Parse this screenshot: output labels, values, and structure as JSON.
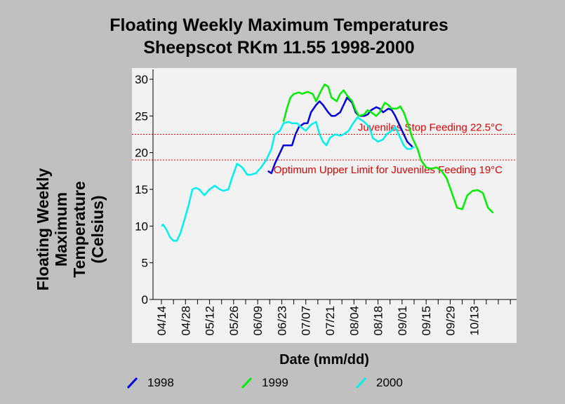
{
  "chart_data": {
    "type": "line",
    "title": "Floating Weekly Maximum Temperatures",
    "subtitle": "Sheepscot RKm 11.55 1998-2000",
    "xlabel": "Date (mm/dd)",
    "ylabel": [
      "Floating Weekly",
      "Maximum",
      "Temperature",
      "(Celsius)"
    ],
    "x_tick_labels": [
      "04/14",
      "04/28",
      "05/12",
      "05/26",
      "06/09",
      "06/23",
      "07/07",
      "07/21",
      "08/04",
      "08/18",
      "09/01",
      "09/15",
      "09/29",
      "10/13"
    ],
    "y_ticks": [
      0,
      5,
      10,
      15,
      20,
      25,
      30
    ],
    "ylim": [
      0,
      30
    ],
    "x_unit": "days since 04/14",
    "xlim": [
      0,
      196
    ],
    "grid": false,
    "legend_position": "bottom",
    "reference_lines": [
      {
        "y": 22.5,
        "label": "Juveniles Stop Feeding 22.5°C",
        "color": "#e00000"
      },
      {
        "y": 19,
        "label": "Optimum Upper Limit for Juveniles Feeding 19°C",
        "color": "#e00000"
      }
    ],
    "series": [
      {
        "name": "1998",
        "color": "#0000d8",
        "x": [
          62,
          64,
          66,
          69,
          71,
          73,
          76,
          78,
          80,
          83,
          85,
          87,
          90,
          92,
          94,
          97,
          99,
          101,
          104,
          106,
          108,
          111,
          113,
          115,
          118,
          120,
          122,
          125,
          127,
          129,
          132,
          134,
          136,
          139,
          141,
          143,
          146
        ],
        "y": [
          17.5,
          17.2,
          18.5,
          20.0,
          21.0,
          21.0,
          21.0,
          22.5,
          23.5,
          24.0,
          24.0,
          25.5,
          26.5,
          27.0,
          26.5,
          25.5,
          25.0,
          25.0,
          25.5,
          26.5,
          27.5,
          26.8,
          25.5,
          25.0,
          25.0,
          25.2,
          25.8,
          26.2,
          26.0,
          25.5,
          26.0,
          25.8,
          25.0,
          23.5,
          22.5,
          21.5,
          20.8
        ]
      },
      {
        "name": "1999",
        "color": "#00ee00",
        "x": [
          71,
          73,
          75,
          77,
          80,
          82,
          85,
          88,
          90,
          93,
          95,
          97,
          99,
          102,
          104,
          106,
          108,
          111,
          113,
          115,
          118,
          120,
          122,
          125,
          127,
          130,
          132,
          134,
          137,
          139,
          141,
          144,
          146,
          149,
          151,
          154,
          157,
          160,
          163,
          166,
          169,
          172,
          175,
          178,
          181,
          184,
          187,
          190,
          193
        ],
        "y": [
          24.2,
          26.0,
          27.5,
          28.0,
          28.2,
          28.0,
          28.3,
          28.0,
          27.0,
          28.5,
          29.3,
          29.0,
          27.5,
          27.0,
          28.0,
          28.5,
          27.8,
          27.0,
          25.8,
          25.0,
          25.2,
          25.8,
          25.5,
          25.0,
          25.5,
          26.8,
          26.5,
          26.0,
          26.0,
          26.3,
          25.5,
          23.5,
          22.0,
          20.5,
          19.0,
          18.0,
          17.8,
          18.0,
          17.5,
          16.5,
          14.5,
          12.5,
          12.3,
          14.2,
          14.8,
          14.9,
          14.5,
          12.5,
          11.8
        ]
      },
      {
        "name": "2000",
        "color": "#00f0f0",
        "x": [
          0,
          1,
          3,
          5,
          7,
          9,
          11,
          13,
          16,
          18,
          20,
          22,
          25,
          28,
          31,
          34,
          36,
          39,
          41,
          44,
          47,
          50,
          52,
          55,
          58,
          61,
          64,
          66,
          69,
          71,
          74,
          76,
          79,
          81,
          84,
          87,
          90,
          92,
          94,
          96,
          98,
          101,
          104,
          106,
          109,
          111,
          114,
          116,
          118,
          121,
          123,
          126,
          129,
          131,
          134,
          136,
          138,
          141,
          143,
          145,
          147
        ],
        "y": [
          10.0,
          10.2,
          9.5,
          8.5,
          8.0,
          8.0,
          9.0,
          10.5,
          13.0,
          15.0,
          15.2,
          15.0,
          14.2,
          15.0,
          15.5,
          15.0,
          14.8,
          15.0,
          16.5,
          18.5,
          18.0,
          17.0,
          17.0,
          17.2,
          18.0,
          19.0,
          20.5,
          22.5,
          23.0,
          24.0,
          24.2,
          24.0,
          24.0,
          23.5,
          23.0,
          23.8,
          24.2,
          22.5,
          21.5,
          21.0,
          22.0,
          22.5,
          22.3,
          22.5,
          23.0,
          23.8,
          24.8,
          24.5,
          24.2,
          23.5,
          22.0,
          21.5,
          21.8,
          22.5,
          23.0,
          23.5,
          22.5,
          21.0,
          20.5,
          20.5,
          20.8
        ]
      }
    ]
  }
}
